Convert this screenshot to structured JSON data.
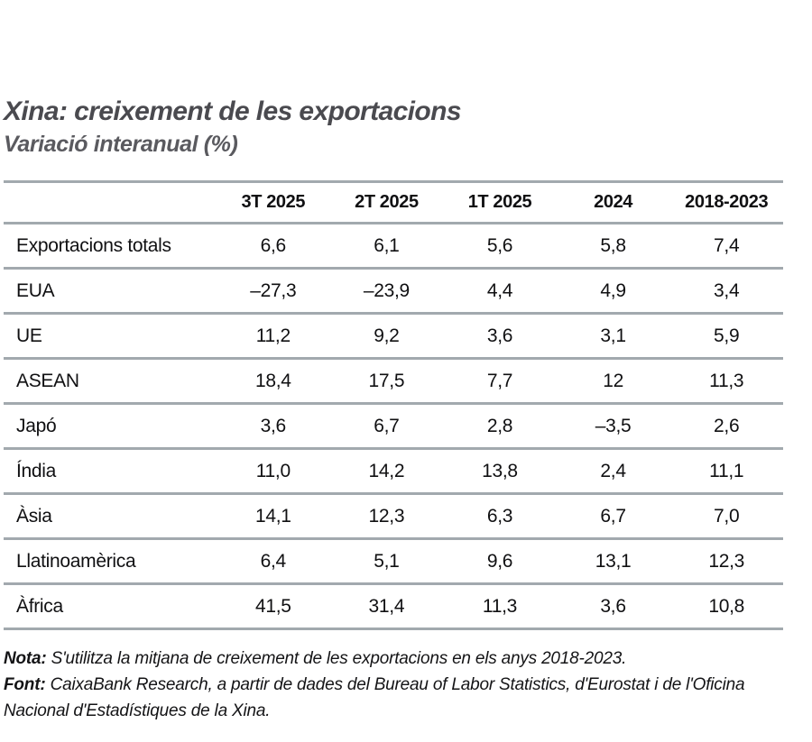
{
  "page": {
    "background": "#ffffff",
    "title_color": "#4a4a4f",
    "subtitle_color": "#5a5a5f",
    "rule_color": "#a2a9ae",
    "text_color": "#101012"
  },
  "header": {
    "title": "Xina: creixement de les exportacions",
    "subtitle": "Variació interanual (%)"
  },
  "table": {
    "columns": [
      "3T 2025",
      "2T 2025",
      "1T 2025",
      "2024",
      "2018-2023"
    ],
    "rows": [
      {
        "label": "Exportacions totals",
        "values": [
          "6,6",
          "6,1",
          "5,6",
          "5,8",
          "7,4"
        ]
      },
      {
        "label": "EUA",
        "values": [
          "–27,3",
          "–23,9",
          "4,4",
          "4,9",
          "3,4"
        ]
      },
      {
        "label": "UE",
        "values": [
          "11,2",
          "9,2",
          "3,6",
          "3,1",
          "5,9"
        ]
      },
      {
        "label": "ASEAN",
        "values": [
          "18,4",
          "17,5",
          "7,7",
          "12",
          "11,3"
        ]
      },
      {
        "label": "Japó",
        "values": [
          "3,6",
          "6,7",
          "2,8",
          "–3,5",
          "2,6"
        ]
      },
      {
        "label": "Índia",
        "values": [
          "11,0",
          "14,2",
          "13,8",
          "2,4",
          "11,1"
        ]
      },
      {
        "label": "Àsia",
        "values": [
          "14,1",
          "12,3",
          "6,3",
          "6,7",
          "7,0"
        ]
      },
      {
        "label": "Llatinoamèrica",
        "values": [
          "6,4",
          "5,1",
          "9,6",
          "13,1",
          "12,3"
        ]
      },
      {
        "label": "Àfrica",
        "values": [
          "41,5",
          "31,4",
          "11,3",
          "3,6",
          "10,8"
        ]
      }
    ]
  },
  "footer": {
    "note_label": "Nota:",
    "note_text": " S'utilitza la mitjana de creixement de les exportacions en els anys 2018-2023.",
    "source_label": "Font:",
    "source_text": " CaixaBank Research, a partir de dades del Bureau of Labor Statistics, d'Eurostat i de l'Oficina Nacional d'Estadístiques de la Xina."
  },
  "chart_data": {
    "type": "table",
    "title": "Xina: creixement de les exportacions",
    "subtitle": "Variació interanual (%)",
    "columns": [
      "3T 2025",
      "2T 2025",
      "1T 2025",
      "2024",
      "2018-2023"
    ],
    "series": [
      {
        "name": "Exportacions totals",
        "values": [
          6.6,
          6.1,
          5.6,
          5.8,
          7.4
        ]
      },
      {
        "name": "EUA",
        "values": [
          -27.3,
          -23.9,
          4.4,
          4.9,
          3.4
        ]
      },
      {
        "name": "UE",
        "values": [
          11.2,
          9.2,
          3.6,
          3.1,
          5.9
        ]
      },
      {
        "name": "ASEAN",
        "values": [
          18.4,
          17.5,
          7.7,
          12,
          11.3
        ]
      },
      {
        "name": "Japó",
        "values": [
          3.6,
          6.7,
          2.8,
          -3.5,
          2.6
        ]
      },
      {
        "name": "Índia",
        "values": [
          11.0,
          14.2,
          13.8,
          2.4,
          11.1
        ]
      },
      {
        "name": "Àsia",
        "values": [
          14.1,
          12.3,
          6.3,
          6.7,
          7.0
        ]
      },
      {
        "name": "Llatinoamèrica",
        "values": [
          6.4,
          5.1,
          9.6,
          13.1,
          12.3
        ]
      },
      {
        "name": "Àfrica",
        "values": [
          41.5,
          31.4,
          11.3,
          3.6,
          10.8
        ]
      }
    ],
    "note": "S'utilitza la mitjana de creixement de les exportacions en els anys 2018-2023.",
    "source": "CaixaBank Research, a partir de dades del Bureau of Labor Statistics, d'Eurostat i de l'Oficina Nacional d'Estadístiques de la Xina."
  }
}
